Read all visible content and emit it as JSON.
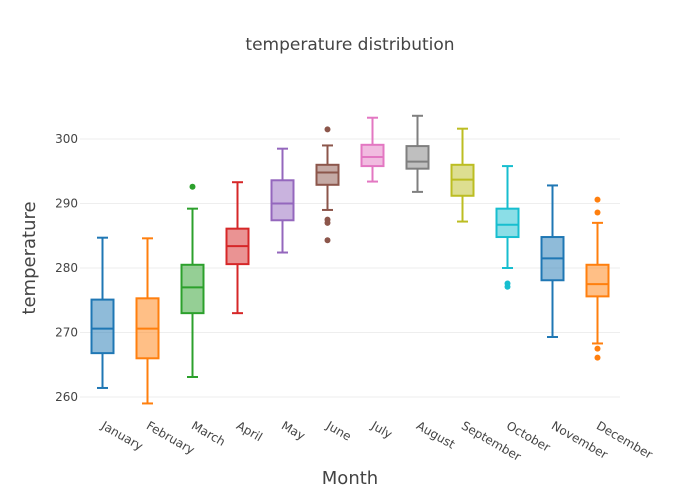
{
  "chart_data": {
    "type": "box",
    "title": "temperature distribution",
    "xlabel": "Month",
    "ylabel": "temperature",
    "ylim": [
      257,
      306
    ],
    "yticks": [
      260,
      270,
      280,
      290,
      300
    ],
    "grid": true,
    "legend": "none",
    "categories": [
      "January",
      "February",
      "March",
      "April",
      "May",
      "June",
      "July",
      "August",
      "September",
      "October",
      "November",
      "December"
    ],
    "series": [
      {
        "category": "January",
        "color": "#1f77b4",
        "lower_whisker": 261.4,
        "q1": 266.8,
        "median": 270.6,
        "q3": 275.1,
        "upper_whisker": 284.7,
        "outliers": []
      },
      {
        "category": "February",
        "color": "#ff7f0e",
        "lower_whisker": 259.0,
        "q1": 266.0,
        "median": 270.6,
        "q3": 275.3,
        "upper_whisker": 284.6,
        "outliers": []
      },
      {
        "category": "March",
        "color": "#2ca02c",
        "lower_whisker": 263.1,
        "q1": 273.0,
        "median": 277.0,
        "q3": 280.5,
        "upper_whisker": 289.2,
        "outliers": [
          292.6
        ]
      },
      {
        "category": "April",
        "color": "#d62728",
        "lower_whisker": 273.0,
        "q1": 280.6,
        "median": 283.4,
        "q3": 286.1,
        "upper_whisker": 293.3,
        "outliers": []
      },
      {
        "category": "May",
        "color": "#9467bd",
        "lower_whisker": 282.4,
        "q1": 287.4,
        "median": 290.0,
        "q3": 293.6,
        "upper_whisker": 298.5,
        "outliers": []
      },
      {
        "category": "June",
        "color": "#8c564b",
        "lower_whisker": 289.0,
        "q1": 292.9,
        "median": 294.8,
        "q3": 296.0,
        "upper_whisker": 299.0,
        "outliers": [
          301.5,
          287.5,
          287.0,
          284.3
        ]
      },
      {
        "category": "July",
        "color": "#e377c2",
        "lower_whisker": 293.4,
        "q1": 295.8,
        "median": 297.2,
        "q3": 299.1,
        "upper_whisker": 303.3,
        "outliers": []
      },
      {
        "category": "August",
        "color": "#7f7f7f",
        "lower_whisker": 291.8,
        "q1": 295.4,
        "median": 296.5,
        "q3": 298.9,
        "upper_whisker": 303.6,
        "outliers": []
      },
      {
        "category": "September",
        "color": "#bcbd22",
        "lower_whisker": 287.2,
        "q1": 291.2,
        "median": 293.7,
        "q3": 296.0,
        "upper_whisker": 301.6,
        "outliers": []
      },
      {
        "category": "October",
        "color": "#17becf",
        "lower_whisker": 280.0,
        "q1": 284.8,
        "median": 286.7,
        "q3": 289.2,
        "upper_whisker": 295.8,
        "outliers": [
          277.6,
          277.1
        ]
      },
      {
        "category": "November",
        "color": "#1f77b4",
        "lower_whisker": 269.3,
        "q1": 278.1,
        "median": 281.5,
        "q3": 284.8,
        "upper_whisker": 292.8,
        "outliers": []
      },
      {
        "category": "December",
        "color": "#ff7f0e",
        "lower_whisker": 268.3,
        "q1": 275.6,
        "median": 277.5,
        "q3": 280.5,
        "upper_whisker": 287.0,
        "outliers": [
          290.6,
          288.6,
          267.5,
          266.1
        ]
      }
    ]
  }
}
